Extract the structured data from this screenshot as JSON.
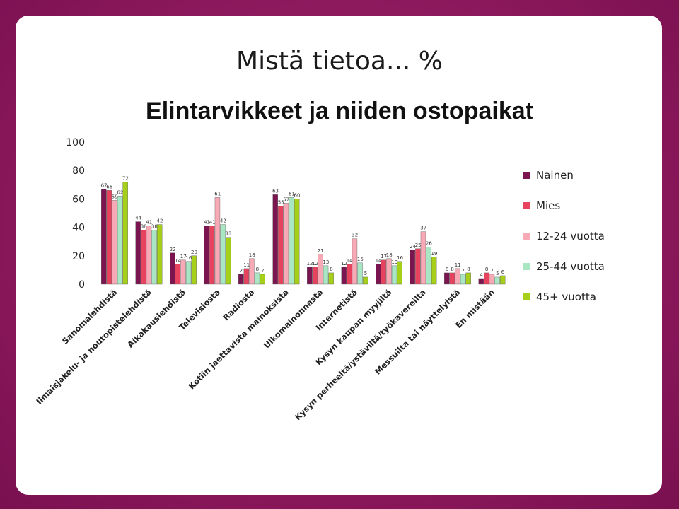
{
  "slide_title": "Mistä tietoa... %",
  "chart_data": {
    "type": "bar",
    "title": "Elintarvikkeet ja niiden ostopaikat",
    "ylim": [
      0,
      100
    ],
    "yticks": [
      0,
      20,
      40,
      60,
      80,
      100
    ],
    "legend_position": "right",
    "grid": false,
    "categories": [
      "Sanomalehdistä",
      "Ilmaisjakelu- ja noutopistelehdistä",
      "Aikakauslehdistä",
      "Televisiosta",
      "Radiosta",
      "Kotiin jaettavista mainoksista",
      "Ulkomainonnasta",
      "Internetistä",
      "Kysyn kaupan myyjiltä",
      "Kysyn perheeltä/ystäviltä/työkavereilta",
      "Messuilta tai näyttelyistä",
      "En mistään"
    ],
    "series": [
      {
        "name": "Nainen",
        "color": "#7a1550",
        "values": [
          67,
          44,
          22,
          41,
          7,
          63,
          12,
          12,
          14,
          24,
          8,
          4
        ]
      },
      {
        "name": "Mies",
        "color": "#e8435e",
        "values": [
          66,
          38,
          14,
          41,
          11,
          55,
          12,
          14,
          17,
          25,
          8,
          8
        ]
      },
      {
        "name": "12-24 vuotta",
        "color": "#f7a9b6",
        "values": [
          59,
          41,
          17,
          61,
          18,
          57,
          21,
          32,
          18,
          37,
          11,
          7
        ]
      },
      {
        "name": "25-44 vuotta",
        "color": "#a8e6c4",
        "values": [
          62,
          38,
          16,
          42,
          8,
          61,
          13,
          15,
          13,
          26,
          7,
          5
        ]
      },
      {
        "name": "45+ vuotta",
        "color": "#a6cf1a",
        "values": [
          72,
          42,
          20,
          33,
          7,
          60,
          8,
          5,
          16,
          19,
          8,
          6
        ]
      }
    ]
  }
}
